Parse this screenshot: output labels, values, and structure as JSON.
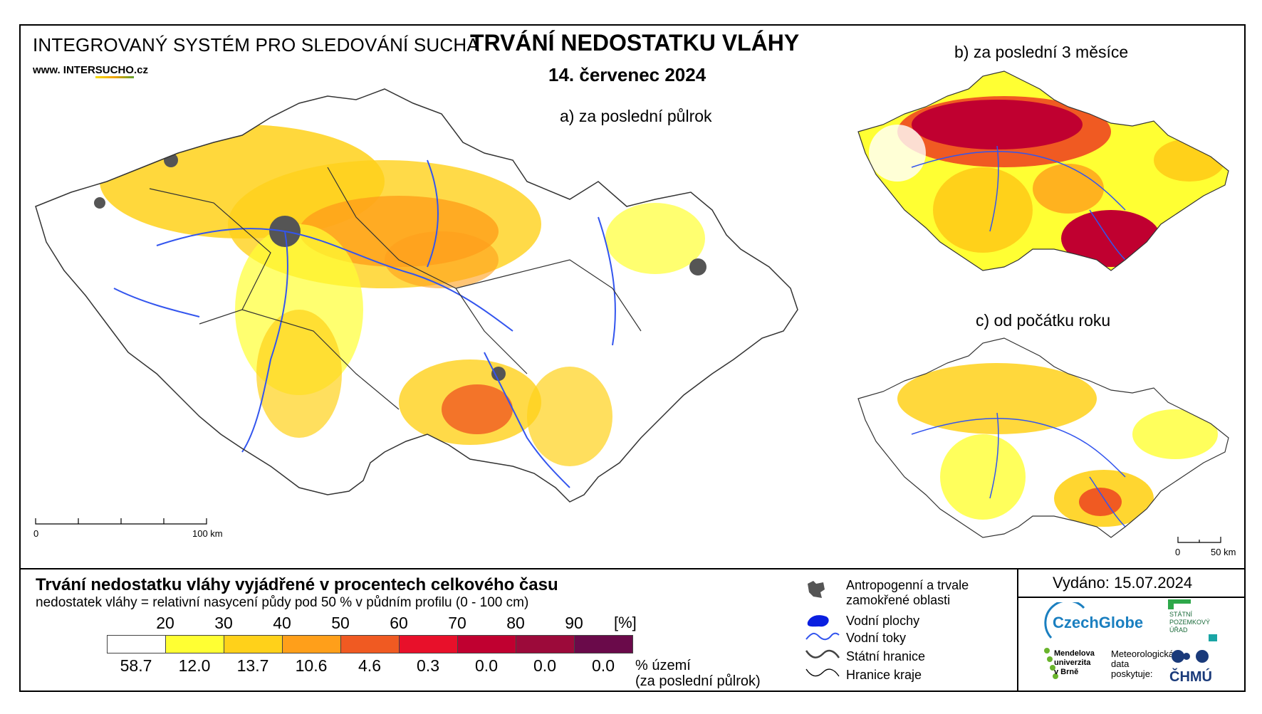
{
  "header": {
    "system_title": "INTEGROVANÝ SYSTÉM PRO SLEDOVÁNÍ SUCHA",
    "website_prefix": "www. INTER",
    "website_underlined": "SUCHO",
    "website_suffix": ".cz",
    "main_title": "TRVÁNÍ NEDOSTATKU VLÁHY",
    "date": "14. červenec 2024"
  },
  "maps": {
    "a_label": "a) za poslední půlrok",
    "b_label": "b) za poslední 3 měsíce",
    "c_label": "c) od počátku roku",
    "scale_main": {
      "start": "0",
      "end": "100 km"
    },
    "scale_small": {
      "start": "0",
      "end": "50 km"
    }
  },
  "legend": {
    "title": "Trvání nedostatku vláhy vyjádřené v procentech celkového času",
    "subtitle": "nedostatek vláhy = relativní nasycení půdy pod 50 % v půdním profilu (0 - 100 cm)",
    "ticks": [
      "20",
      "30",
      "40",
      "50",
      "60",
      "70",
      "80",
      "90"
    ],
    "unit": "[%]",
    "colors": [
      "#ffffff",
      "#ffff33",
      "#ffd11a",
      "#ff9f1a",
      "#f05a22",
      "#e8102a",
      "#c00030",
      "#9c0a3a",
      "#6a0a4a"
    ],
    "area_percent": [
      "58.7",
      "12.0",
      "13.7",
      "10.6",
      "4.6",
      "0.3",
      "0.0",
      "0.0",
      "0.0"
    ],
    "area_label_1": "% území",
    "area_label_2": "(za poslední půlrok)"
  },
  "symbols": {
    "anthropogenic_1": "Antropogenní a trvale",
    "anthropogenic_2": "zamokřené oblasti",
    "water_bodies": "Vodní plochy",
    "water_courses": "Vodní toky",
    "state_border": "Státní hranice",
    "region_border": "Hranice kraje"
  },
  "footer": {
    "issued": "Vydáno: 15.07.2024",
    "czechglobe": "CzechGlobe",
    "spu_1": "STÁTNÍ",
    "spu_2": "POZEMKOVÝ",
    "spu_3": "ÚŘAD",
    "mendel_1": "Mendelova",
    "mendel_2": "univerzita",
    "mendel_3": "v Brně",
    "met_1": "Meteorologická",
    "met_2": "data",
    "met_3": "poskytuje:",
    "chmu": "ČHMÚ"
  }
}
